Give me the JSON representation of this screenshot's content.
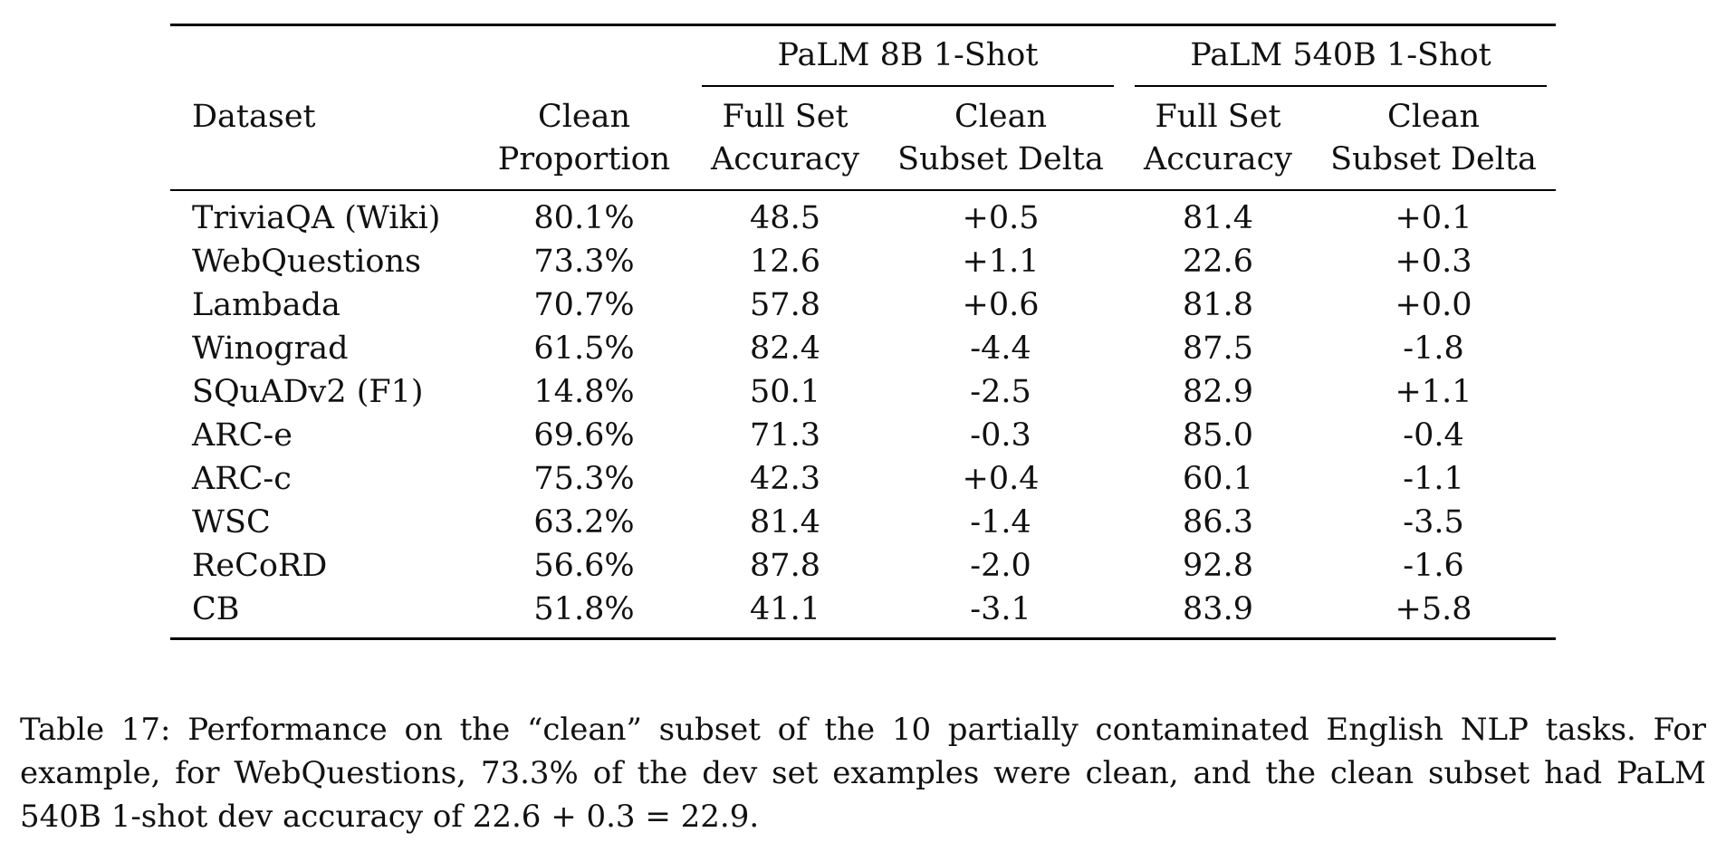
{
  "table": {
    "group_headers": [
      "PaLM 8B 1-Shot",
      "PaLM 540B 1-Shot"
    ],
    "headers": [
      {
        "line1": "Dataset",
        "line2": ""
      },
      {
        "line1": "Clean",
        "line2": "Proportion"
      },
      {
        "line1": "Full Set",
        "line2": "Accuracy"
      },
      {
        "line1": "Clean",
        "line2": "Subset Delta"
      },
      {
        "line1": "Full Set",
        "line2": "Accuracy"
      },
      {
        "line1": "Clean",
        "line2": "Subset Delta"
      }
    ],
    "rows": [
      [
        "TriviaQA (Wiki)",
        "80.1%",
        "48.5",
        "+0.5",
        "81.4",
        "+0.1"
      ],
      [
        "WebQuestions",
        "73.3%",
        "12.6",
        "+1.1",
        "22.6",
        "+0.3"
      ],
      [
        "Lambada",
        "70.7%",
        "57.8",
        "+0.6",
        "81.8",
        "+0.0"
      ],
      [
        "Winograd",
        "61.5%",
        "82.4",
        "-4.4",
        "87.5",
        "-1.8"
      ],
      [
        "SQuADv2 (F1)",
        "14.8%",
        "50.1",
        "-2.5",
        "82.9",
        "+1.1"
      ],
      [
        "ARC-e",
        "69.6%",
        "71.3",
        "-0.3",
        "85.0",
        "-0.4"
      ],
      [
        "ARC-c",
        "75.3%",
        "42.3",
        "+0.4",
        "60.1",
        "-1.1"
      ],
      [
        "WSC",
        "63.2%",
        "81.4",
        "-1.4",
        "86.3",
        "-3.5"
      ],
      [
        "ReCoRD",
        "56.6%",
        "87.8",
        "-2.0",
        "92.8",
        "-1.6"
      ],
      [
        "CB",
        "51.8%",
        "41.1",
        "-3.1",
        "83.9",
        "+5.8"
      ]
    ]
  },
  "caption": "Table 17: Performance on the “clean” subset of the 10 partially contaminated English NLP tasks. For example, for WebQuestions, 73.3% of the dev set examples were clean, and the clean subset had PaLM 540B 1-shot dev accuracy of 22.6 + 0.3 = 22.9."
}
